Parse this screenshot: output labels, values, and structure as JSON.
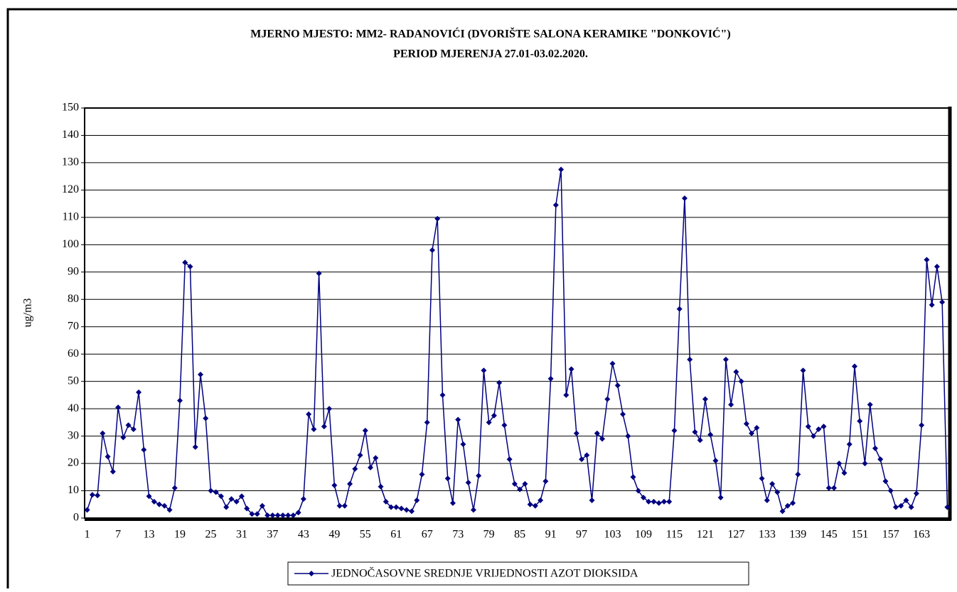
{
  "chart_data": {
    "type": "line",
    "title": "MJERNO MJESTO: MM2- RADANOVIĆI (DVORIŠTE SALONA KERAMIKE \"DONKOVIĆ\")",
    "subtitle": "PERIOD MJERENJA 27.01-03.02.2020.",
    "y_label": "ug/m3",
    "categories": [
      1,
      null,
      null,
      null,
      null,
      null,
      7,
      null,
      null,
      null,
      null,
      null,
      13,
      null,
      null,
      null,
      null,
      null,
      19,
      null,
      null,
      null,
      null,
      null,
      25,
      null,
      null,
      null,
      null,
      null,
      31,
      null,
      null,
      null,
      null,
      null,
      37,
      null,
      null,
      null,
      null,
      null,
      43,
      null,
      null,
      null,
      null,
      null,
      49,
      null,
      null,
      null,
      null,
      null,
      55,
      null,
      null,
      null,
      null,
      null,
      61,
      null,
      null,
      null,
      null,
      null,
      67,
      null,
      null,
      null,
      null,
      null,
      73,
      null,
      null,
      null,
      null,
      null,
      79,
      null,
      null,
      null,
      null,
      null,
      85,
      null,
      null,
      null,
      null,
      null,
      91,
      null,
      null,
      null,
      null,
      null,
      97,
      null,
      null,
      null,
      null,
      null,
      103,
      null,
      null,
      null,
      null,
      null,
      109,
      null,
      null,
      null,
      null,
      null,
      115,
      null,
      null,
      null,
      null,
      null,
      121,
      null,
      null,
      null,
      null,
      null,
      127,
      null,
      null,
      null,
      null,
      null,
      133,
      null,
      null,
      null,
      null,
      null,
      139,
      null,
      null,
      null,
      null,
      null,
      145,
      null,
      null,
      null,
      null,
      null,
      151,
      null,
      null,
      null,
      null,
      null,
      157,
      null,
      null,
      null,
      null,
      null,
      163,
      null,
      null,
      null,
      null,
      null
    ],
    "series": [
      {
        "name": "JEDNOČASOVNE SREDNJE VRIJEDNOSTI AZOT DIOKSIDA",
        "color": "#000080",
        "values": [
          3,
          8.5,
          8.3,
          31,
          22.5,
          17,
          40.5,
          29.5,
          34,
          32.5,
          46,
          25,
          8,
          6,
          5,
          4.5,
          3,
          11,
          43,
          93.5,
          92,
          26,
          52.5,
          36.5,
          10,
          9.5,
          8,
          4,
          7,
          6,
          8,
          3.5,
          1.5,
          1.5,
          4.5,
          1,
          1,
          1,
          1,
          1,
          1,
          2,
          7,
          38,
          32.5,
          89.5,
          33.5,
          40,
          12,
          4.5,
          4.5,
          12.5,
          18,
          23,
          32,
          18.5,
          22,
          11.5,
          6,
          4,
          4,
          3.5,
          3,
          2.5,
          6.5,
          16,
          35,
          98,
          109.5,
          45,
          14.5,
          5.5,
          36,
          27,
          13,
          3,
          15.5,
          54,
          35,
          37.5,
          49.5,
          34,
          21.5,
          12.5,
          10.5,
          12.5,
          5,
          4.5,
          6.5,
          13.5,
          51,
          114.5,
          127.5,
          45,
          54.5,
          31,
          21.5,
          23,
          6.5,
          31,
          29,
          43.5,
          56.5,
          48.5,
          38,
          30,
          15,
          10,
          7.5,
          6,
          6,
          5.5,
          6,
          6,
          32,
          76.5,
          117,
          58,
          31.5,
          28.5,
          43.5,
          30.5,
          21,
          7.5,
          58,
          41.5,
          53.5,
          50,
          34.5,
          31,
          33,
          14.5,
          6.5,
          12.5,
          9.5,
          2.5,
          4.5,
          5.5,
          16,
          54,
          33.5,
          30,
          32.5,
          33.5,
          11,
          11,
          20,
          16.5,
          27,
          55.5,
          35.5,
          20,
          41.5,
          25.5,
          21.5,
          13.5,
          10,
          4,
          4.5,
          6.5,
          4,
          9,
          34,
          94.5,
          78,
          92,
          79,
          4
        ]
      }
    ],
    "ylim": [
      0,
      150
    ],
    "yticks": [
      0,
      10,
      20,
      30,
      40,
      50,
      60,
      70,
      80,
      90,
      100,
      110,
      120,
      130,
      140,
      150
    ],
    "grid": true,
    "legend": "bottom"
  }
}
